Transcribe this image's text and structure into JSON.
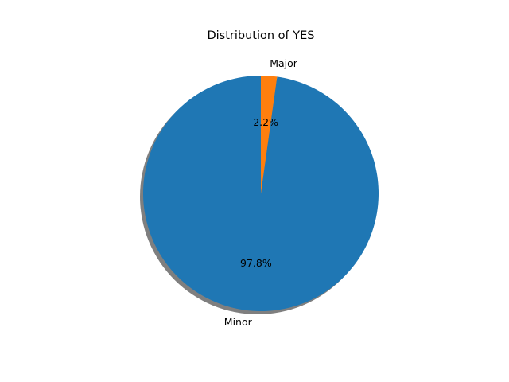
{
  "chart_data": {
    "type": "pie",
    "title": "Distribution of YES",
    "slices": [
      {
        "label": "Minor",
        "value": 97.8,
        "pct_label": "97.8%",
        "color": "#1f77b4"
      },
      {
        "label": "Major",
        "value": 2.2,
        "pct_label": "2.2%",
        "color": "#ff7f0e"
      }
    ],
    "start_angle_deg": 90,
    "direction": "counterclockwise",
    "shadow": true,
    "legend": "none"
  }
}
